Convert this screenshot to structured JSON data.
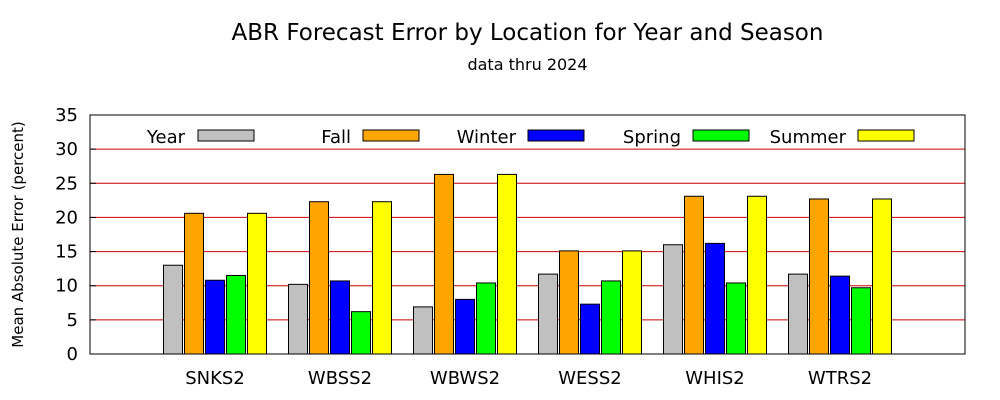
{
  "chart_data": {
    "type": "bar",
    "title": "ABR Forecast Error by Location for Year and Season",
    "subtitle": "data thru 2024",
    "xlabel": "",
    "ylabel": "Mean Absolute Error (percent)",
    "ylim": [
      0,
      35
    ],
    "yticks": [
      0,
      5,
      10,
      15,
      20,
      25,
      30,
      35
    ],
    "grid": true,
    "legend_position": "top",
    "categories": [
      "SNKS2",
      "WBSS2",
      "WBWS2",
      "WESS2",
      "WHIS2",
      "WTRS2"
    ],
    "series": [
      {
        "name": "Year",
        "color": "#c0c0c0",
        "values": [
          13.0,
          10.2,
          6.9,
          11.7,
          16.0,
          11.7
        ]
      },
      {
        "name": "Fall",
        "color": "#ffa500",
        "values": [
          20.6,
          22.3,
          26.3,
          15.1,
          23.1,
          22.7
        ]
      },
      {
        "name": "Winter",
        "color": "#0000ff",
        "values": [
          10.8,
          10.7,
          8.0,
          7.3,
          16.2,
          11.4
        ]
      },
      {
        "name": "Spring",
        "color": "#00ff00",
        "values": [
          11.5,
          6.2,
          10.4,
          10.7,
          10.4,
          9.7
        ]
      },
      {
        "name": "Summer",
        "color": "#ffff00",
        "values": [
          20.6,
          22.3,
          26.3,
          15.1,
          23.1,
          22.7
        ]
      }
    ],
    "gridline_color": "#cc0000"
  }
}
